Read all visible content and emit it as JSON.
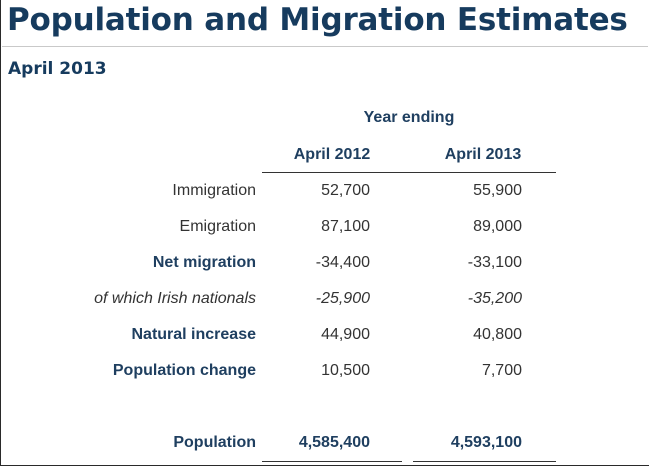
{
  "header": {
    "title": "Population and Migration Estimates",
    "subtitle": "April 2013"
  },
  "table": {
    "group_header": "Year ending",
    "columns": [
      "April 2012",
      "April 2013"
    ],
    "rows": [
      {
        "label": "Immigration",
        "values": [
          "52,700",
          "55,900"
        ]
      },
      {
        "label": "Emigration",
        "values": [
          "87,100",
          "89,000"
        ]
      },
      {
        "label": "Net migration",
        "values": [
          "-34,400",
          "-33,100"
        ]
      },
      {
        "label": "of which Irish nationals",
        "values": [
          "-25,900",
          "-35,200"
        ]
      },
      {
        "label": "Natural increase",
        "values": [
          "44,900",
          "40,800"
        ]
      },
      {
        "label": "Population change",
        "values": [
          "10,500",
          "7,700"
        ]
      },
      {
        "label": "Population",
        "values": [
          "4,585,400",
          "4,593,100"
        ]
      }
    ]
  }
}
